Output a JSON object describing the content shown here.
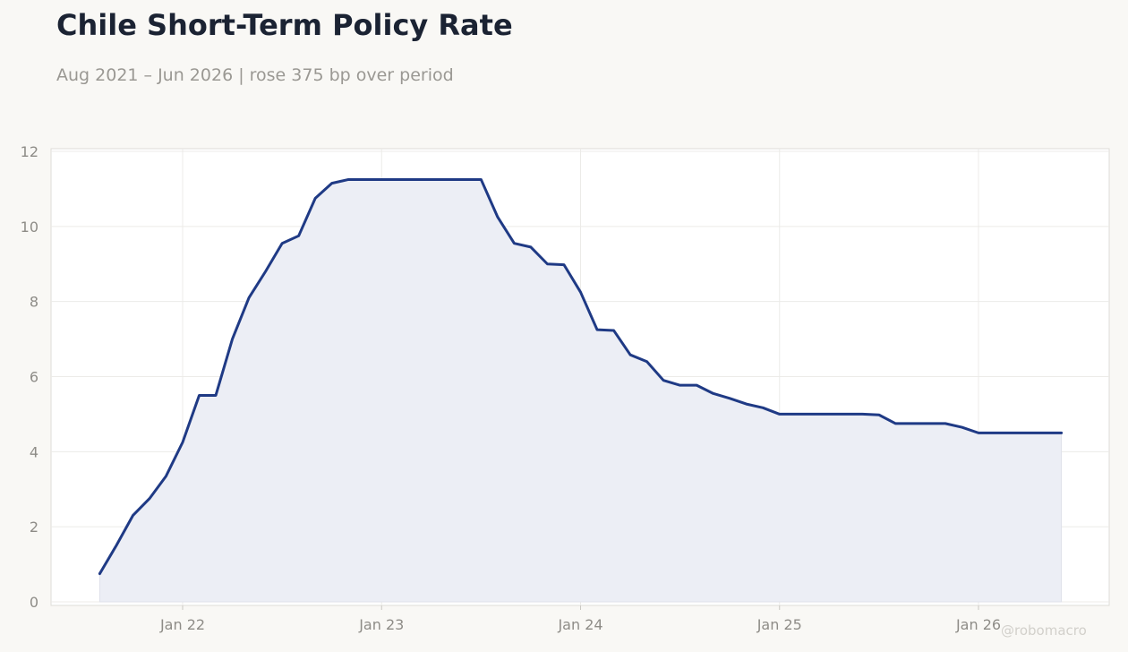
{
  "header": {
    "title": "Chile Short-Term Policy Rate",
    "subtitle": "Aug 2021 – Jun 2026 | rose 375 bp over period"
  },
  "watermark": "@robomacro",
  "colors": {
    "background": "#f9f8f5",
    "plot_background": "#ffffff",
    "line": "#1f3a85",
    "area_fill": "#eceef5",
    "grid": "#ecebe8",
    "title": "#1b2333",
    "muted_text": "#9a9893"
  },
  "chart_data": {
    "type": "area",
    "title": "Chile Short-Term Policy Rate",
    "subtitle": "Aug 2021 – Jun 2026 | rose 375 bp over period",
    "xlabel": "",
    "ylabel": "",
    "ylim": [
      0,
      12
    ],
    "yticks": [
      0,
      2,
      4,
      6,
      8,
      10,
      12
    ],
    "xticks": [
      {
        "label": "Jan 22",
        "date": "2022-01"
      },
      {
        "label": "Jan 23",
        "date": "2023-01"
      },
      {
        "label": "Jan 24",
        "date": "2024-01"
      },
      {
        "label": "Jan 25",
        "date": "2025-01"
      },
      {
        "label": "Jan 26",
        "date": "2026-01"
      }
    ],
    "grid": true,
    "legend": "none",
    "series": [
      {
        "points": [
          [
            "2021-08",
            0.75
          ],
          [
            "2021-09",
            1.5
          ],
          [
            "2021-10",
            2.3
          ],
          [
            "2021-11",
            2.75
          ],
          [
            "2021-12",
            3.35
          ],
          [
            "2022-01",
            4.25
          ],
          [
            "2022-02",
            5.5
          ],
          [
            "2022-03",
            5.5
          ],
          [
            "2022-04",
            7.0
          ],
          [
            "2022-05",
            8.1
          ],
          [
            "2022-06",
            8.8
          ],
          [
            "2022-07",
            9.55
          ],
          [
            "2022-08",
            9.75
          ],
          [
            "2022-09",
            10.75
          ],
          [
            "2022-10",
            11.15
          ],
          [
            "2022-11",
            11.25
          ],
          [
            "2022-12",
            11.25
          ],
          [
            "2023-01",
            11.25
          ],
          [
            "2023-02",
            11.25
          ],
          [
            "2023-03",
            11.25
          ],
          [
            "2023-04",
            11.25
          ],
          [
            "2023-05",
            11.25
          ],
          [
            "2023-06",
            11.25
          ],
          [
            "2023-07",
            11.25
          ],
          [
            "2023-08",
            10.25
          ],
          [
            "2023-09",
            9.55
          ],
          [
            "2023-10",
            9.45
          ],
          [
            "2023-11",
            9.0
          ],
          [
            "2023-12",
            8.98
          ],
          [
            "2024-01",
            8.25
          ],
          [
            "2024-02",
            7.25
          ],
          [
            "2024-03",
            7.23
          ],
          [
            "2024-04",
            6.58
          ],
          [
            "2024-05",
            6.4
          ],
          [
            "2024-06",
            5.9
          ],
          [
            "2024-07",
            5.77
          ],
          [
            "2024-08",
            5.77
          ],
          [
            "2024-09",
            5.55
          ],
          [
            "2024-10",
            5.42
          ],
          [
            "2024-11",
            5.27
          ],
          [
            "2024-12",
            5.17
          ],
          [
            "2025-01",
            5.0
          ],
          [
            "2025-02",
            5.0
          ],
          [
            "2025-03",
            5.0
          ],
          [
            "2025-04",
            5.0
          ],
          [
            "2025-05",
            5.0
          ],
          [
            "2025-06",
            5.0
          ],
          [
            "2025-07",
            4.98
          ],
          [
            "2025-08",
            4.75
          ],
          [
            "2025-09",
            4.75
          ],
          [
            "2025-10",
            4.75
          ],
          [
            "2025-11",
            4.75
          ],
          [
            "2025-12",
            4.65
          ],
          [
            "2026-01",
            4.5
          ],
          [
            "2026-02",
            4.5
          ],
          [
            "2026-03",
            4.5
          ],
          [
            "2026-04",
            4.5
          ],
          [
            "2026-05",
            4.5
          ],
          [
            "2026-06",
            4.5
          ]
        ]
      }
    ]
  }
}
